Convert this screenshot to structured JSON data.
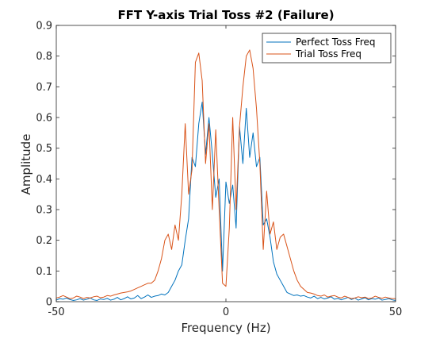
{
  "chart_data": {
    "type": "line",
    "title": "FFT Y-axis Trial Toss #2 (Failure)",
    "xlabel": "Frequency (Hz)",
    "ylabel": "Amplitude",
    "xlim": [
      -50,
      50
    ],
    "ylim": [
      0,
      0.9
    ],
    "xticks": [
      -50,
      0,
      50
    ],
    "xtick_labels": [
      "-50",
      "0",
      "50"
    ],
    "yticks": [
      0,
      0.1,
      0.2,
      0.3,
      0.4,
      0.5,
      0.6,
      0.7,
      0.8,
      0.9
    ],
    "ytick_labels": [
      "0",
      "0.1",
      "0.2",
      "0.3",
      "0.4",
      "0.5",
      "0.6",
      "0.7",
      "0.8",
      "0.9"
    ],
    "grid": false,
    "legend_position": "top-right",
    "series": [
      {
        "name": "Perfect Toss Freq",
        "color": "#0072BD",
        "x": [
          -50,
          -49,
          -48,
          -47,
          -46,
          -45,
          -44,
          -43,
          -42,
          -41,
          -40,
          -39,
          -38,
          -37,
          -36,
          -35,
          -34,
          -33,
          -32,
          -31,
          -30,
          -29,
          -28,
          -27,
          -26,
          -25,
          -24,
          -23,
          -22,
          -21,
          -20,
          -19,
          -18,
          -17,
          -16,
          -15,
          -14,
          -13,
          -12,
          -11,
          -10,
          -9,
          -8,
          -7,
          -6,
          -5,
          -4,
          -3,
          -2,
          -1,
          0,
          1,
          2,
          3,
          4,
          5,
          6,
          7,
          8,
          9,
          10,
          11,
          12,
          13,
          14,
          15,
          16,
          17,
          18,
          19,
          20,
          21,
          22,
          23,
          24,
          25,
          26,
          27,
          28,
          29,
          30,
          31,
          32,
          33,
          34,
          35,
          36,
          37,
          38,
          39,
          40,
          41,
          42,
          43,
          44,
          45,
          46,
          47,
          48,
          49,
          50
        ],
        "y": [
          0.005,
          0.01,
          0.008,
          0.012,
          0.007,
          0.004,
          0.006,
          0.01,
          0.005,
          0.008,
          0.012,
          0.006,
          0.004,
          0.009,
          0.007,
          0.011,
          0.005,
          0.008,
          0.014,
          0.006,
          0.01,
          0.016,
          0.009,
          0.012,
          0.02,
          0.01,
          0.015,
          0.022,
          0.014,
          0.018,
          0.02,
          0.025,
          0.022,
          0.03,
          0.05,
          0.07,
          0.1,
          0.12,
          0.2,
          0.27,
          0.47,
          0.44,
          0.58,
          0.65,
          0.48,
          0.6,
          0.48,
          0.34,
          0.4,
          0.1,
          0.39,
          0.32,
          0.38,
          0.24,
          0.57,
          0.45,
          0.63,
          0.47,
          0.55,
          0.44,
          0.47,
          0.25,
          0.27,
          0.21,
          0.13,
          0.09,
          0.07,
          0.05,
          0.03,
          0.025,
          0.02,
          0.022,
          0.018,
          0.02,
          0.015,
          0.012,
          0.018,
          0.01,
          0.014,
          0.009,
          0.012,
          0.016,
          0.008,
          0.011,
          0.006,
          0.01,
          0.014,
          0.007,
          0.012,
          0.005,
          0.009,
          0.013,
          0.006,
          0.01,
          0.008,
          0.012,
          0.005,
          0.007,
          0.01,
          0.006,
          0.004
        ]
      },
      {
        "name": "Trial Toss Freq",
        "color": "#D95319",
        "x": [
          -50,
          -49,
          -48,
          -47,
          -46,
          -45,
          -44,
          -43,
          -42,
          -41,
          -40,
          -39,
          -38,
          -37,
          -36,
          -35,
          -34,
          -33,
          -32,
          -31,
          -30,
          -29,
          -28,
          -27,
          -26,
          -25,
          -24,
          -23,
          -22,
          -21,
          -20,
          -19,
          -18,
          -17,
          -16,
          -15,
          -14,
          -13,
          -12,
          -11,
          -10,
          -9,
          -8,
          -7,
          -6,
          -5,
          -4,
          -3,
          -2,
          -1,
          0,
          1,
          2,
          3,
          4,
          5,
          6,
          7,
          8,
          9,
          10,
          11,
          12,
          13,
          14,
          15,
          16,
          17,
          18,
          19,
          20,
          21,
          22,
          23,
          24,
          25,
          26,
          27,
          28,
          29,
          30,
          31,
          32,
          33,
          34,
          35,
          36,
          37,
          38,
          39,
          40,
          41,
          42,
          43,
          44,
          45,
          46,
          47,
          48,
          49,
          50
        ],
        "y": [
          0.012,
          0.015,
          0.02,
          0.015,
          0.01,
          0.012,
          0.018,
          0.015,
          0.01,
          0.014,
          0.012,
          0.016,
          0.018,
          0.013,
          0.015,
          0.02,
          0.018,
          0.022,
          0.025,
          0.028,
          0.03,
          0.032,
          0.035,
          0.04,
          0.045,
          0.05,
          0.055,
          0.06,
          0.06,
          0.07,
          0.1,
          0.14,
          0.2,
          0.22,
          0.17,
          0.25,
          0.2,
          0.35,
          0.58,
          0.35,
          0.43,
          0.78,
          0.81,
          0.72,
          0.45,
          0.58,
          0.3,
          0.56,
          0.3,
          0.06,
          0.05,
          0.24,
          0.6,
          0.3,
          0.57,
          0.7,
          0.8,
          0.82,
          0.76,
          0.63,
          0.45,
          0.17,
          0.36,
          0.22,
          0.26,
          0.17,
          0.21,
          0.22,
          0.18,
          0.14,
          0.1,
          0.07,
          0.05,
          0.04,
          0.03,
          0.028,
          0.025,
          0.02,
          0.018,
          0.022,
          0.015,
          0.018,
          0.02,
          0.015,
          0.012,
          0.018,
          0.014,
          0.01,
          0.012,
          0.016,
          0.013,
          0.015,
          0.01,
          0.012,
          0.018,
          0.014,
          0.011,
          0.015,
          0.012,
          0.01,
          0.01
        ]
      }
    ]
  }
}
